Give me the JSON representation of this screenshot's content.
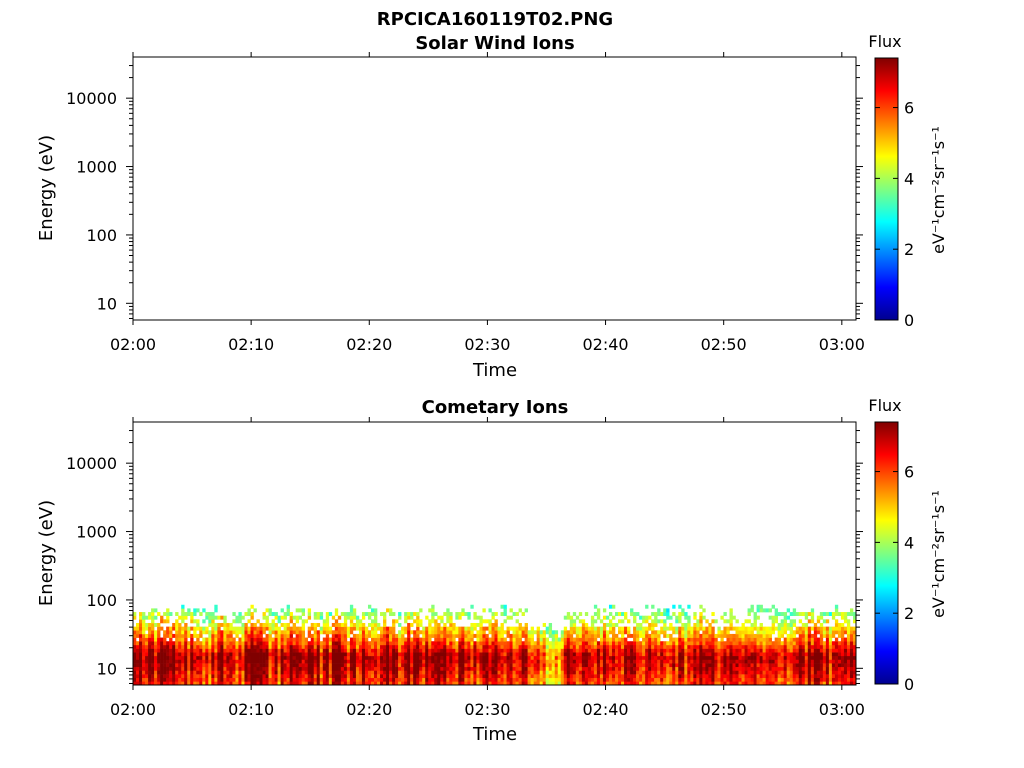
{
  "title": "RPCICA160119T02.PNG",
  "colors": {
    "colormap": "jet",
    "axis": "#000000",
    "background": "#ffffff"
  },
  "chart_data": [
    {
      "type": "heatmap",
      "title": "Solar Wind Ions",
      "xlabel": "Time",
      "ylabel": "Energy (eV)",
      "x_ticks": [
        "02:00",
        "02:10",
        "02:20",
        "02:30",
        "02:40",
        "02:50",
        "03:00"
      ],
      "x_range_minutes": [
        0,
        61.2
      ],
      "y_scale": "log",
      "y_ticks": [
        "10",
        "100",
        "1000",
        "10000"
      ],
      "ylim": [
        5.7,
        40000
      ],
      "colorbar": {
        "label": "Flux",
        "unit": "eV⁻¹cm⁻²sr⁻¹s⁻¹",
        "ticks": [
          "0",
          "2",
          "4",
          "6"
        ],
        "range": [
          0,
          7.4
        ]
      },
      "data": []
    },
    {
      "type": "heatmap",
      "title": "Cometary Ions",
      "xlabel": "Time",
      "ylabel": "Energy (eV)",
      "x_ticks": [
        "02:00",
        "02:10",
        "02:20",
        "02:30",
        "02:40",
        "02:50",
        "03:00"
      ],
      "x_range_minutes": [
        0,
        61.2
      ],
      "y_scale": "log",
      "y_ticks": [
        "10",
        "100",
        "1000",
        "10000"
      ],
      "ylim": [
        5.7,
        40000
      ],
      "colorbar": {
        "label": "Flux",
        "unit": "eV⁻¹cm⁻²sr⁻¹s⁻¹",
        "ticks": [
          "0",
          "2",
          "4",
          "6"
        ],
        "range": [
          0,
          7.4
        ]
      },
      "data": {
        "energy_upper_edge_eV": 85,
        "energy_lower_edge_eV": 5.7,
        "peak_energy_eV": 15,
        "peak_flux": 7.0,
        "flux_at_30eV": 4.8,
        "flux_at_70eV": 3.0,
        "enhanced_minutes": [
          0.5,
          2.5,
          4.0,
          7.5,
          10.0,
          11.0,
          13.5,
          15.0,
          17.5,
          19.5,
          21.5,
          23.5,
          25.0,
          27.0,
          30.0,
          32.5,
          38.5,
          41.0,
          44.0,
          48.0,
          50.5,
          57.5,
          60.0
        ],
        "weak_minutes_range": [
          33.5,
          36.5
        ]
      }
    }
  ]
}
